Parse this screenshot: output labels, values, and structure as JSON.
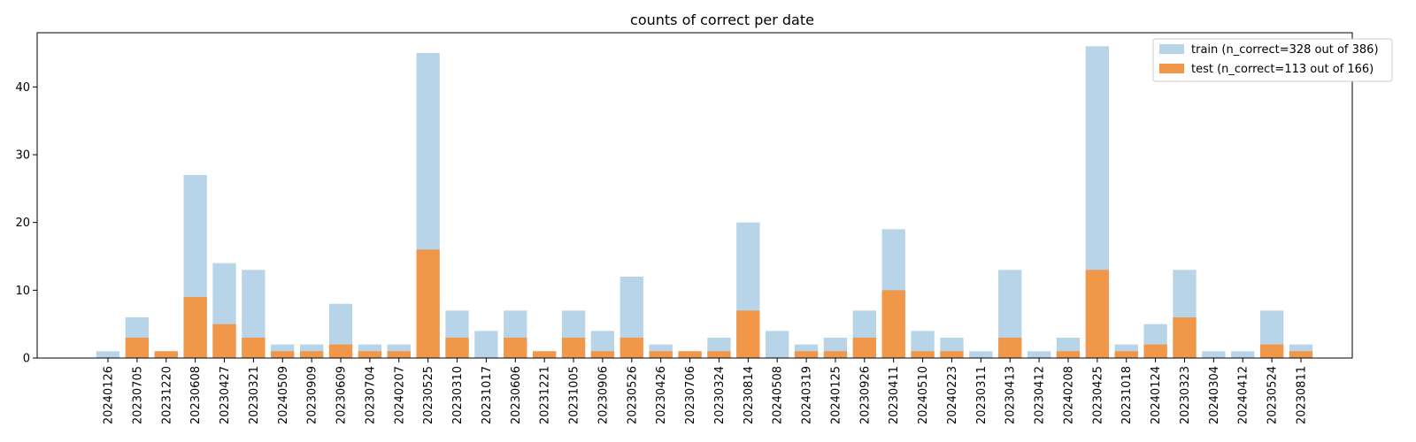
{
  "chart_data": {
    "type": "bar",
    "title": "counts of correct per date",
    "xlabel": "",
    "ylabel": "",
    "ylim": [
      0,
      48
    ],
    "yticks": [
      0,
      10,
      20,
      30,
      40
    ],
    "grid": false,
    "legend_position": "top-right",
    "categories": [
      "20240126",
      "20230705",
      "20231220",
      "20230608",
      "20230427",
      "20230321",
      "20240509",
      "20230909",
      "20230609",
      "20230704",
      "20240207",
      "20230525",
      "20230310",
      "20231017",
      "20230606",
      "20231221",
      "20231005",
      "20230906",
      "20230526",
      "20230426",
      "20230706",
      "20230324",
      "20230814",
      "20240508",
      "20240319",
      "20240125",
      "20230926",
      "20230411",
      "20240510",
      "20240223",
      "20230311",
      "20230413",
      "20230412",
      "20240208",
      "20230425",
      "20231018",
      "20240124",
      "20230323",
      "20240304",
      "20240412",
      "20230524",
      "20230811"
    ],
    "series": [
      {
        "name": "train (n_correct=328 out of 386)",
        "color": "#b8d4e8",
        "values": [
          1,
          6,
          1,
          27,
          14,
          13,
          2,
          2,
          8,
          2,
          2,
          45,
          7,
          4,
          7,
          1,
          7,
          4,
          12,
          2,
          1,
          3,
          20,
          4,
          2,
          3,
          7,
          19,
          4,
          3,
          1,
          13,
          1,
          3,
          46,
          2,
          5,
          13,
          1,
          1,
          7,
          2
        ]
      },
      {
        "name": "test (n_correct=113 out of 166)",
        "color": "#f0974a",
        "values": [
          0,
          3,
          1,
          9,
          5,
          3,
          1,
          1,
          2,
          1,
          1,
          16,
          3,
          0,
          3,
          1,
          3,
          1,
          3,
          1,
          1,
          1,
          7,
          0,
          1,
          1,
          3,
          10,
          1,
          1,
          0,
          3,
          0,
          1,
          13,
          1,
          2,
          6,
          0,
          0,
          2,
          1
        ]
      }
    ]
  }
}
